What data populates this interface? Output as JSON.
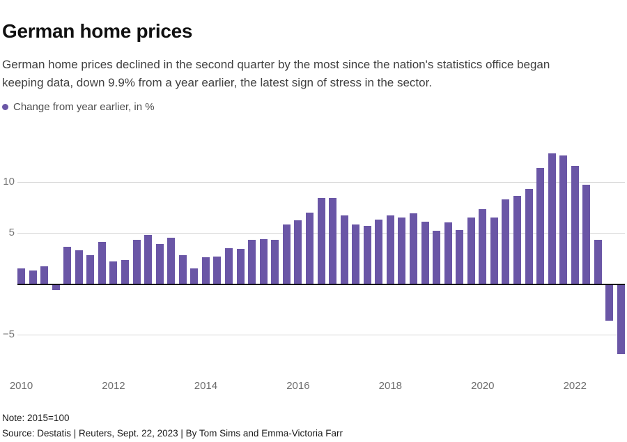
{
  "header": {
    "title": "German home prices",
    "subtitle": "German home prices declined in the second quarter by the most since the nation's statistics office began keeping data, down 9.9% from a year earlier, the latest sign of stress in the sector."
  },
  "legend": {
    "label": "Change from year earlier, in %"
  },
  "colors": {
    "bar": "#6a56a6",
    "legend_dot": "#6a56a6",
    "grid": "#d5d5d5",
    "zero_line": "#000000",
    "axis_text": "#757575",
    "title_text": "#111111",
    "subtitle_text": "#404040",
    "footer_text": "#1a1a1a"
  },
  "chart_data": {
    "type": "bar",
    "title": "Change from year earlier, in %",
    "ylabel": "",
    "xlabel": "",
    "grid": true,
    "legend_position": "top-left",
    "ylim": [
      -8,
      14
    ],
    "y_ticks": [
      10,
      5,
      -5
    ],
    "x_ticks": [
      "2010",
      "2012",
      "2014",
      "2016",
      "2018",
      "2020",
      "2022"
    ],
    "x": [
      "2010 Q1",
      "2010 Q2",
      "2010 Q3",
      "2010 Q4",
      "2011 Q1",
      "2011 Q2",
      "2011 Q3",
      "2011 Q4",
      "2012 Q1",
      "2012 Q2",
      "2012 Q3",
      "2012 Q4",
      "2013 Q1",
      "2013 Q2",
      "2013 Q3",
      "2013 Q4",
      "2014 Q1",
      "2014 Q2",
      "2014 Q3",
      "2014 Q4",
      "2015 Q1",
      "2015 Q2",
      "2015 Q3",
      "2015 Q4",
      "2016 Q1",
      "2016 Q2",
      "2016 Q3",
      "2016 Q4",
      "2017 Q1",
      "2017 Q2",
      "2017 Q3",
      "2017 Q4",
      "2018 Q1",
      "2018 Q2",
      "2018 Q3",
      "2018 Q4",
      "2019 Q1",
      "2019 Q2",
      "2019 Q3",
      "2019 Q4",
      "2020 Q1",
      "2020 Q2",
      "2020 Q3",
      "2020 Q4",
      "2021 Q1",
      "2021 Q2",
      "2021 Q3",
      "2021 Q4",
      "2022 Q1",
      "2022 Q2",
      "2022 Q3",
      "2022 Q4",
      "2023 Q1"
    ],
    "values": [
      1.5,
      1.3,
      1.7,
      -0.5,
      3.6,
      3.3,
      2.8,
      4.1,
      2.2,
      2.3,
      4.3,
      4.8,
      3.9,
      4.5,
      2.8,
      1.5,
      2.6,
      2.7,
      3.5,
      3.4,
      4.3,
      4.4,
      4.3,
      5.8,
      6.2,
      7.0,
      8.4,
      8.4,
      6.7,
      5.8,
      5.7,
      6.3,
      6.7,
      6.5,
      6.9,
      6.1,
      5.2,
      6.0,
      5.3,
      6.5,
      7.3,
      6.5,
      8.3,
      8.6,
      9.3,
      11.4,
      12.8,
      12.6,
      11.6,
      9.7,
      4.3,
      -3.5,
      -6.8
    ]
  },
  "footer": {
    "note": "Note: 2015=100",
    "source": "Source: Destatis | Reuters, Sept. 22, 2023 | By Tom Sims and Emma-Victoria Farr"
  }
}
